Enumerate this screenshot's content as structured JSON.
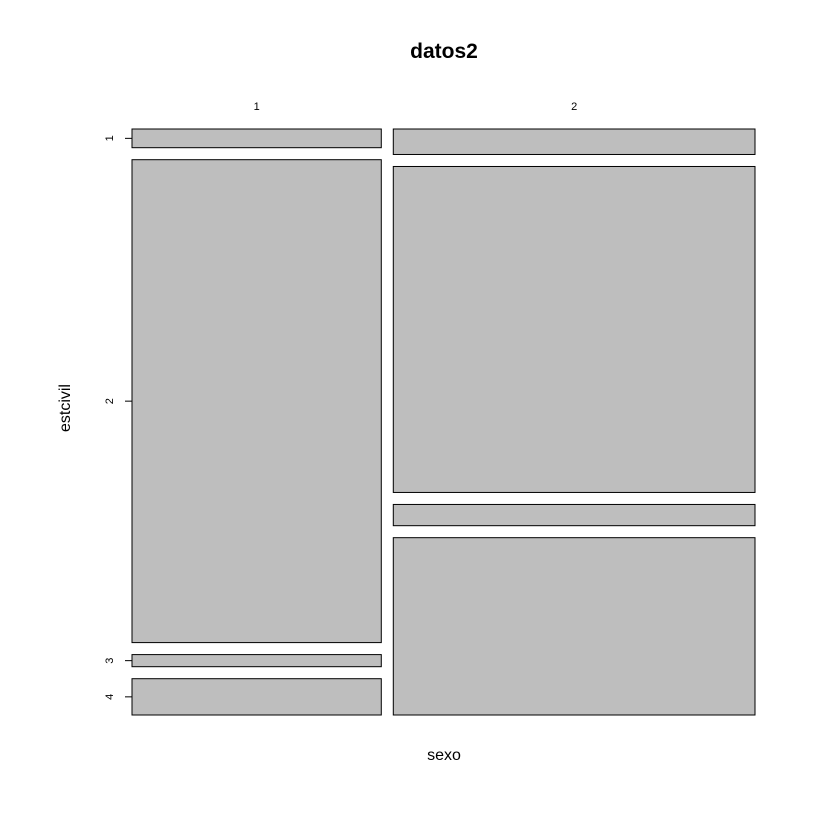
{
  "chart_data": {
    "type": "mosaic",
    "title": "datos2",
    "xlabel": "sexo",
    "ylabel": "estcivil",
    "categories": [
      "1",
      "2"
    ],
    "column_shares": [
      0.408,
      0.592
    ],
    "columns": [
      {
        "name": "1",
        "segments": [
          {
            "level": "1",
            "share": 0.034
          },
          {
            "level": "2",
            "share": 0.878
          },
          {
            "level": "3",
            "share": 0.022
          },
          {
            "level": "4",
            "share": 0.066
          }
        ]
      },
      {
        "name": "2",
        "segments": [
          {
            "level": "1",
            "share": 0.048
          },
          {
            "level": "2",
            "share": 0.614
          },
          {
            "level": "3",
            "share": 0.04
          },
          {
            "level": "4",
            "share": 0.334
          }
        ]
      }
    ],
    "y_tick_labels": [
      {
        "label": "1",
        "column": "1",
        "level": "1"
      },
      {
        "label": "2",
        "column": "1",
        "level": "2"
      },
      {
        "label": "3",
        "column": "1",
        "level": "3"
      },
      {
        "label": "4",
        "column": "1",
        "level": "4"
      }
    ],
    "tile_color": "#bebebe",
    "border_color": "#000000"
  }
}
